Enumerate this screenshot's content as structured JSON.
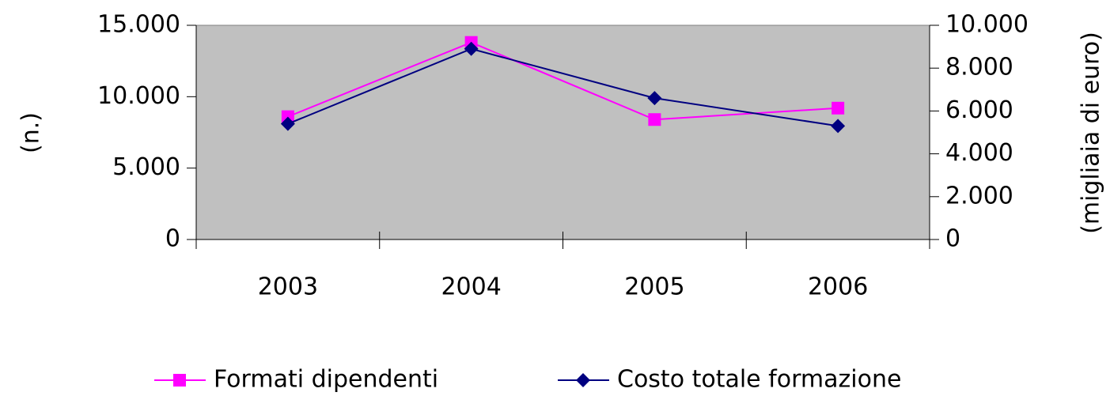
{
  "chart_data": {
    "type": "line",
    "categories": [
      "2003",
      "2004",
      "2005",
      "2006"
    ],
    "y_label": "(n.)",
    "y2_label": "(migliaia di euro)",
    "ylim": [
      0,
      15000
    ],
    "yticks": [
      0,
      {
        "value": 5000,
        "label": "5.000"
      },
      {
        "value": 10000,
        "label": "10.000"
      },
      {
        "value": 15000,
        "label": "15.000"
      }
    ],
    "y2lim": [
      0,
      10000
    ],
    "y2ticks": [
      0,
      {
        "value": 2000,
        "label": "2.000"
      },
      {
        "value": 4000,
        "label": "4.000"
      },
      {
        "value": 6000,
        "label": "6.000"
      },
      {
        "value": 8000,
        "label": "8.000"
      },
      {
        "value": 10000,
        "label": "10.000"
      }
    ],
    "plot_background": "#c0c0c0",
    "legend": "bottom",
    "series": [
      {
        "name": "Formati dipendenti",
        "color": "#ff00ff",
        "marker": "square",
        "values": [
          8600,
          13800,
          8400,
          9200
        ]
      },
      {
        "name": "Costo totale formazione",
        "color": "#000080",
        "marker": "diamond",
        "axis": "y2",
        "values": [
          5400,
          8900,
          6600,
          5300
        ]
      }
    ]
  }
}
